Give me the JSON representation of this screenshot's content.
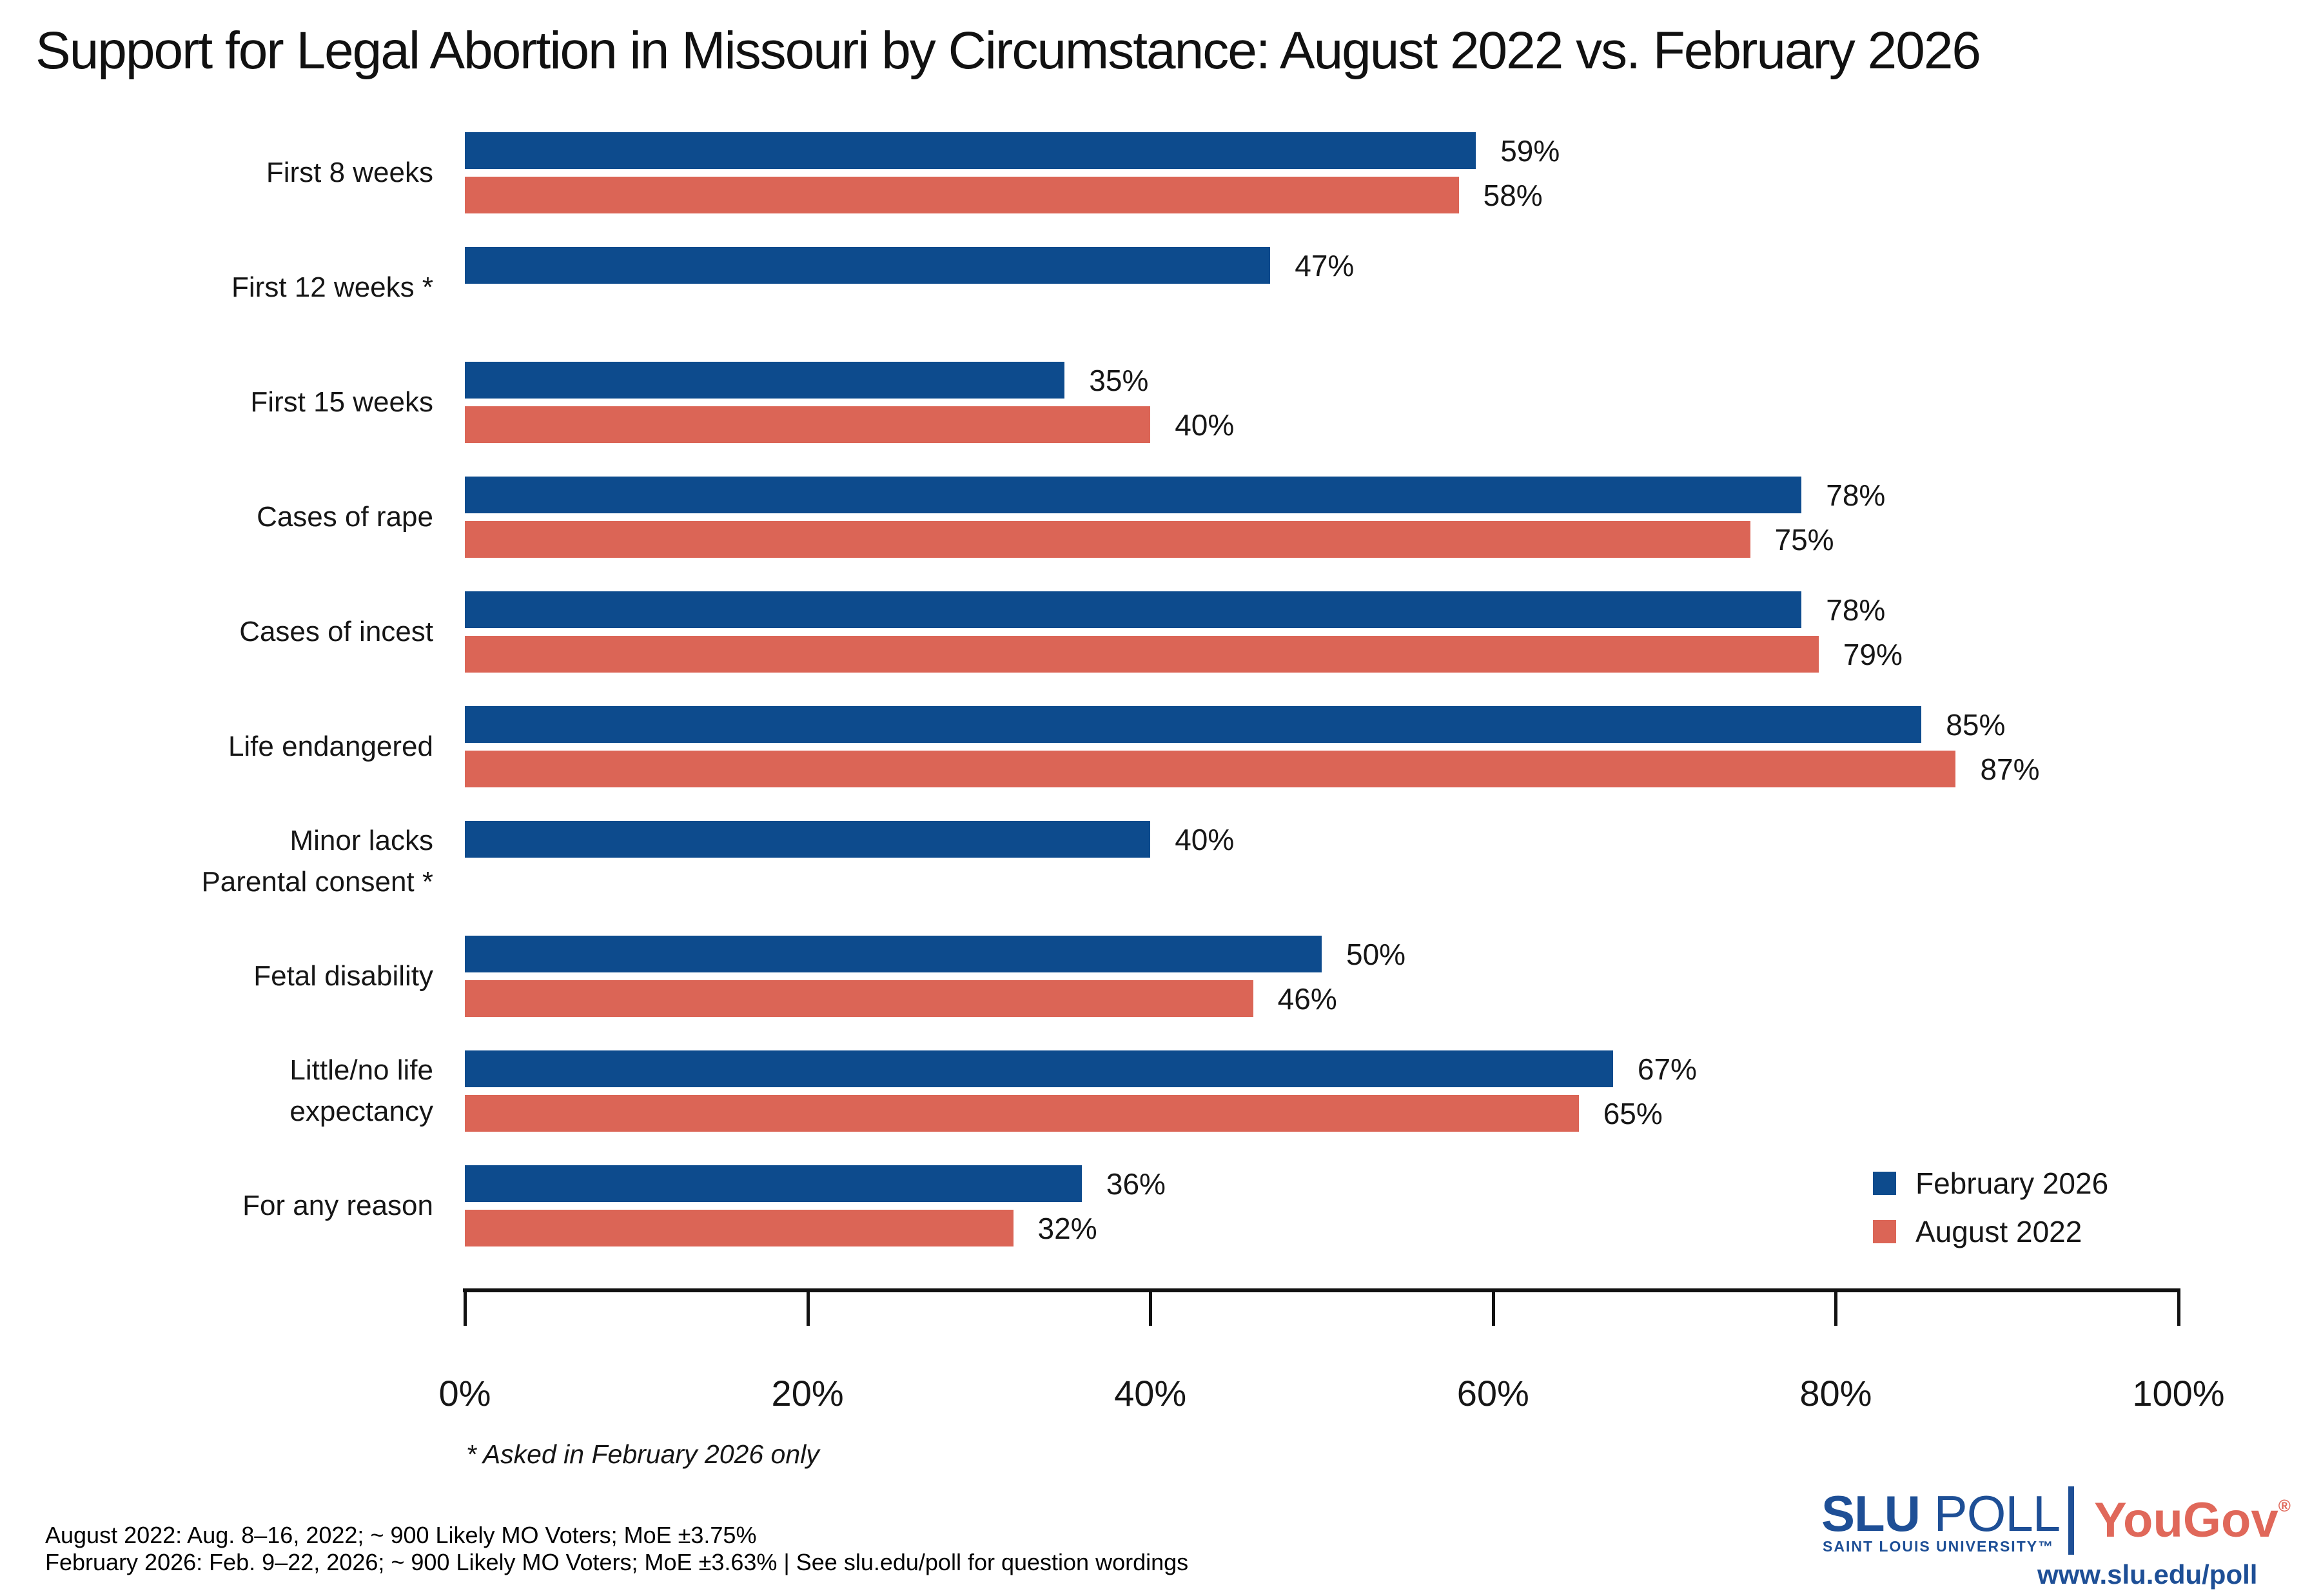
{
  "title": "Support for Legal Abortion in Missouri by Circumstance: August 2022 vs. February 2026",
  "chart_data": {
    "type": "bar",
    "orientation": "horizontal",
    "categories": [
      "First 8 weeks",
      "First 12 weeks *",
      "First 15 weeks",
      "Cases of rape",
      "Cases of incest",
      "Life endangered",
      "Minor lacks\nParental consent *",
      "Fetal disability",
      "Little/no life\nexpectancy",
      "For any reason"
    ],
    "series": [
      {
        "name": "February 2026",
        "color": "#0D4B8D",
        "values": [
          59,
          47,
          35,
          78,
          78,
          85,
          40,
          50,
          67,
          36
        ]
      },
      {
        "name": "August 2022",
        "color": "#DB6556",
        "values": [
          58,
          null,
          40,
          75,
          79,
          87,
          null,
          46,
          65,
          32
        ]
      }
    ],
    "value_suffix": "%",
    "x_ticks": [
      "0%",
      "20%",
      "40%",
      "60%",
      "80%",
      "100%"
    ],
    "xlim": [
      0,
      100
    ],
    "grid": false,
    "legend_position": "bottom-right",
    "footnote": "* Asked in February 2026 only"
  },
  "footer": {
    "line1": "August 2022: Aug. 8–16, 2022; ~ 900 Likely MO Voters; MoE ±3.75%",
    "line2": "February 2026: Feb. 9–22, 2026; ~ 900 Likely MO Voters; MoE ±3.63%  |  See slu.edu/poll for question wordings"
  },
  "branding": {
    "slu": "SLU",
    "poll": "POLL",
    "slu_sub": "SAINT LOUIS UNIVERSITY™",
    "yougov": "YouGov",
    "registered": "®",
    "url": "www.slu.edu/poll",
    "slu_blue": "#1E4F96",
    "yougov_red": "#E0685A"
  },
  "colors": {
    "feb_2026_blue": "#0D4B8D",
    "aug_2022_salmon": "#DB6556",
    "axis": "#111111",
    "text": "#161616"
  }
}
